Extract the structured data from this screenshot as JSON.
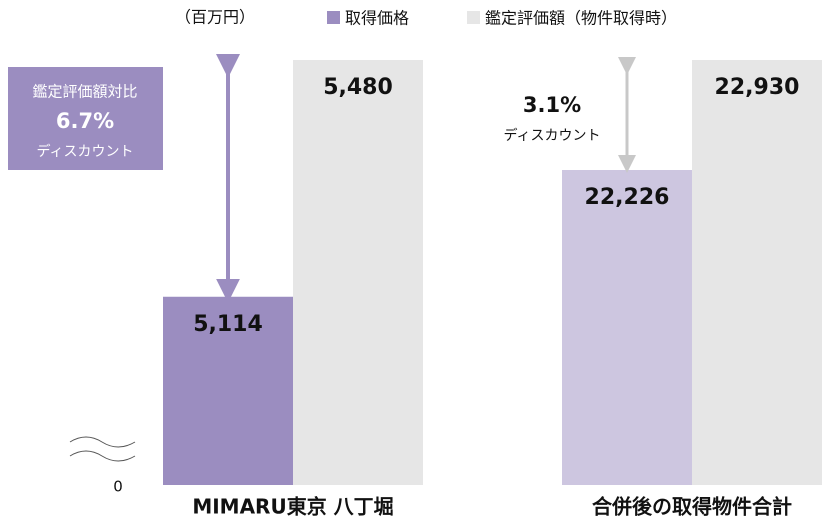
{
  "unit": "（百万円）",
  "legend": [
    {
      "name": "取得価格",
      "color": "#9b8dc0"
    },
    {
      "name": "鑑定評価額（物件取得時）",
      "color": "#e6e6e6"
    }
  ],
  "baseline_label": "0",
  "chart_data": [
    {
      "type": "bar",
      "title": "MIMARU東京 八丁堀",
      "values": [
        5114,
        5480
      ],
      "value_labels": [
        "5,114",
        "5,480"
      ],
      "colors": [
        "#9b8dc0",
        "#e6e6e6"
      ],
      "ylim": [
        4823,
        5480
      ],
      "annotation": [
        "鑑定評価額対比",
        "6.7%",
        "ディスカウント"
      ]
    },
    {
      "type": "bar",
      "title": "合併後の取得物件合計",
      "values": [
        22226,
        22930
      ],
      "value_labels": [
        "22,226",
        "22,930"
      ],
      "colors": [
        "#cdc6e0",
        "#e6e6e6"
      ],
      "ylim": [
        20210,
        22930
      ],
      "annotation": [
        "3.1%",
        "ディスカウント"
      ]
    }
  ]
}
